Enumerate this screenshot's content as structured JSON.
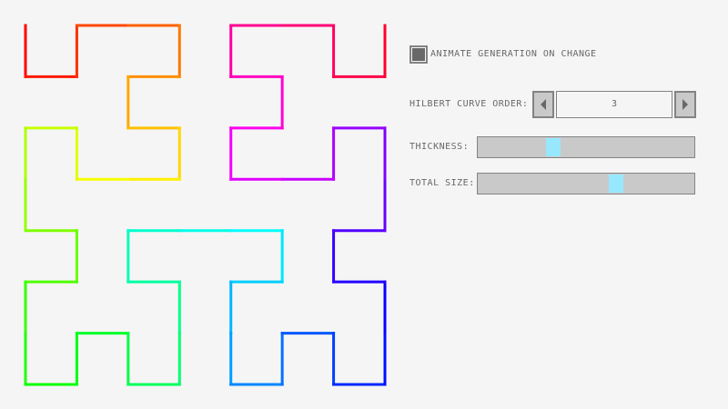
{
  "curve": {
    "order": 3,
    "start_color": "#ff0000",
    "coloring": "rainbow-hue-along-path"
  },
  "controls": {
    "animate_checkbox": {
      "label": "Animate generation on change",
      "checked": true
    },
    "order": {
      "label": "Hilbert curve order:",
      "value": "3"
    },
    "thickness": {
      "label": "Thickness:",
      "fraction": 0.35
    },
    "total_size": {
      "label": "Total size:",
      "fraction": 0.64
    }
  },
  "colors": {
    "background": "#f5f5f5",
    "slider_handle": "#97e8ff",
    "control_fill": "#c9c9c9",
    "border": "#838383",
    "text": "#686868"
  }
}
